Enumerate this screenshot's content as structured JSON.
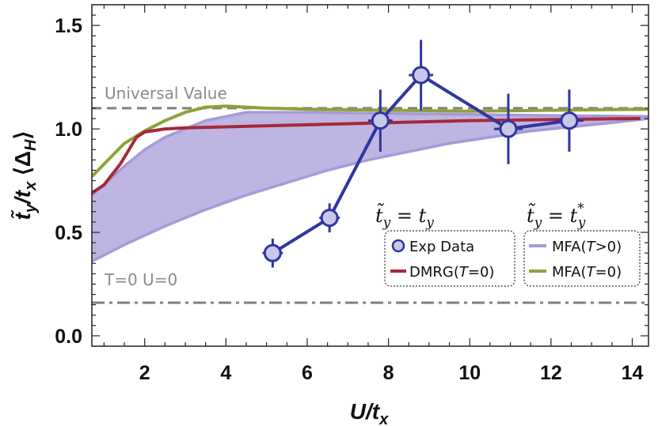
{
  "chart_data": {
    "type": "line",
    "title": "",
    "xlabel": "U/t_x",
    "ylabel": "t̃_y/t_x ⟨Δ_H⟩",
    "xlim": [
      0.7,
      14.4
    ],
    "ylim": [
      -0.05,
      1.6
    ],
    "xticks": [
      2,
      4,
      6,
      8,
      10,
      12,
      14
    ],
    "yticks": [
      0.0,
      0.5,
      1.0,
      1.5
    ],
    "xtick_labels": [
      "2",
      "4",
      "6",
      "8",
      "10",
      "12",
      "14"
    ],
    "ytick_labels": [
      "0.0",
      "0.5",
      "1.0",
      "1.5"
    ],
    "reference_lines": [
      {
        "name": "universal-value",
        "label": "Universal Value",
        "y": 1.1,
        "style": "dashed",
        "color": "#808080"
      },
      {
        "name": "t0-u0",
        "label": "T=0 U=0",
        "y": 0.16,
        "style": "dashdot",
        "color": "#808080"
      }
    ],
    "legend_groups": [
      {
        "header": "t̃_y = t_y",
        "entries": [
          "Exp Data",
          "DMRG(T=0)"
        ]
      },
      {
        "header": "t̃_y = t_y*",
        "entries": [
          "MFA(T>0)",
          "MFA(T=0)"
        ]
      }
    ],
    "series": [
      {
        "name": "Exp Data",
        "type": "scatter-line",
        "color": "#2f35a0",
        "fill": "#c9c7ea",
        "points": [
          {
            "x": 5.15,
            "y": 0.4,
            "xerr": 0.25,
            "yerr": 0.07
          },
          {
            "x": 6.55,
            "y": 0.57,
            "xerr": 0.25,
            "yerr": 0.07
          },
          {
            "x": 7.8,
            "y": 1.04,
            "xerr": 0.3,
            "yerr": 0.15
          },
          {
            "x": 8.8,
            "y": 1.26,
            "xerr": 0.3,
            "yerr": 0.17
          },
          {
            "x": 10.95,
            "y": 1.0,
            "xerr": 0.35,
            "yerr": 0.17
          },
          {
            "x": 12.45,
            "y": 1.04,
            "xerr": 0.35,
            "yerr": 0.15
          }
        ]
      },
      {
        "name": "DMRG(T=0)",
        "type": "line",
        "color": "#a52a3a",
        "points": [
          [
            0.7,
            0.69
          ],
          [
            1.0,
            0.73
          ],
          [
            1.4,
            0.83
          ],
          [
            1.8,
            0.96
          ],
          [
            2.0,
            0.985
          ],
          [
            2.5,
            1.0
          ],
          [
            3.0,
            1.005
          ],
          [
            4.0,
            1.01
          ],
          [
            6.0,
            1.02
          ],
          [
            8.0,
            1.03
          ],
          [
            10.0,
            1.04
          ],
          [
            12.0,
            1.045
          ],
          [
            14.2,
            1.05
          ]
        ]
      },
      {
        "name": "MFA(T=0)",
        "type": "line",
        "color": "#8ca23a",
        "points": [
          [
            0.7,
            0.77
          ],
          [
            1.0,
            0.83
          ],
          [
            1.5,
            0.93
          ],
          [
            2.0,
            0.99
          ],
          [
            2.5,
            1.04
          ],
          [
            3.0,
            1.08
          ],
          [
            3.5,
            1.105
          ],
          [
            4.0,
            1.11
          ],
          [
            4.5,
            1.105
          ],
          [
            5.0,
            1.1
          ],
          [
            6.0,
            1.095
          ],
          [
            8.0,
            1.09
          ],
          [
            10.0,
            1.085
          ],
          [
            12.0,
            1.09
          ],
          [
            14.4,
            1.095
          ]
        ]
      },
      {
        "name": "MFA(T>0)",
        "type": "area",
        "color": "#a69ad6",
        "upper": [
          [
            0.7,
            0.68
          ],
          [
            1.0,
            0.73
          ],
          [
            1.5,
            0.82
          ],
          [
            2.0,
            0.9
          ],
          [
            2.5,
            0.96
          ],
          [
            3.0,
            1.0
          ],
          [
            3.5,
            1.04
          ],
          [
            4.0,
            1.06
          ],
          [
            4.5,
            1.08
          ],
          [
            5.0,
            1.08
          ],
          [
            6.0,
            1.08
          ],
          [
            8.0,
            1.075
          ],
          [
            10.0,
            1.07
          ],
          [
            12.0,
            1.065
          ],
          [
            14.4,
            1.06
          ]
        ],
        "lower": [
          [
            0.7,
            0.36
          ],
          [
            1.5,
            0.44
          ],
          [
            2.5,
            0.53
          ],
          [
            3.5,
            0.61
          ],
          [
            4.5,
            0.68
          ],
          [
            5.5,
            0.74
          ],
          [
            6.5,
            0.8
          ],
          [
            7.5,
            0.85
          ],
          [
            8.5,
            0.89
          ],
          [
            9.5,
            0.93
          ],
          [
            10.5,
            0.96
          ],
          [
            11.5,
            0.99
          ],
          [
            12.5,
            1.01
          ],
          [
            13.5,
            1.03
          ],
          [
            14.4,
            1.05
          ]
        ]
      }
    ]
  },
  "labels": {
    "universal_value": "Universal Value",
    "t_zero_u_zero": "T=0 U=0",
    "legend_left_header": "t̃_y = t_y",
    "legend_right_header": "t̃_y = t_y*",
    "legend_exp": "Exp Data",
    "legend_dmrg": "DMRG(T=0)",
    "legend_mfa_pos": "MFA(T>0)",
    "legend_mfa_zero": "MFA(T=0)"
  }
}
